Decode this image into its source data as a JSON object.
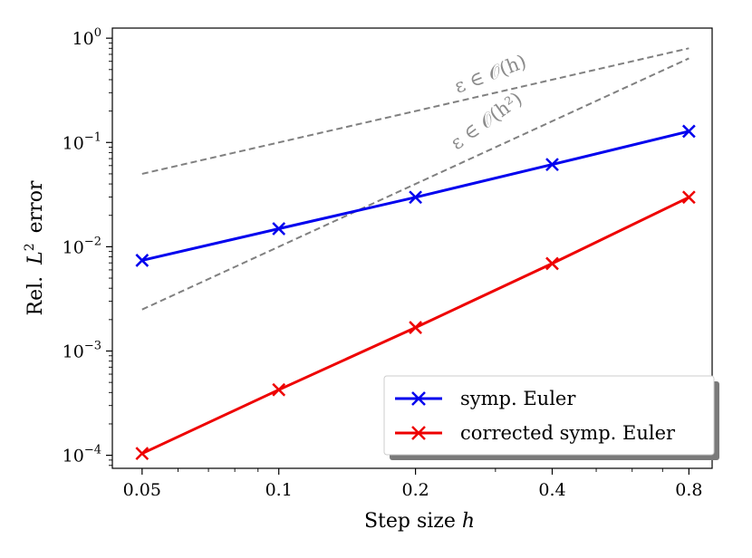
{
  "chart_data": {
    "type": "line",
    "xscale": "log",
    "yscale": "log",
    "x": [
      0.05,
      0.1,
      0.2,
      0.4,
      0.8
    ],
    "xtick_labels": [
      "0.05",
      "0.1",
      "0.2",
      "0.4",
      "0.8"
    ],
    "xlim": [
      0.043,
      0.9
    ],
    "ylim": [
      7.5e-05,
      1.25
    ],
    "ytick_labels": [
      {
        "base": "10",
        "exp": "0",
        "value": 1
      },
      {
        "base": "10",
        "exp": "−1",
        "value": 0.1
      },
      {
        "base": "10",
        "exp": "−2",
        "value": 0.01
      },
      {
        "base": "10",
        "exp": "−3",
        "value": 0.001
      },
      {
        "base": "10",
        "exp": "−4",
        "value": 0.0001
      }
    ],
    "xlabel": "Step size h",
    "xlabel_text": "Step size",
    "xlabel_var": "h",
    "ylabel": "Rel. L² error",
    "ylabel_text_pre": "Rel.",
    "ylabel_var": "L",
    "ylabel_sup": "2",
    "ylabel_text_post": "error",
    "series": [
      {
        "name": "symp. Euler",
        "color": "#0000ee",
        "marker": "x",
        "values": [
          0.0074,
          0.0149,
          0.0298,
          0.0615,
          0.128
        ]
      },
      {
        "name": "corrected symp. Euler",
        "color": "#ee0000",
        "marker": "x",
        "values": [
          0.000104,
          0.000425,
          0.00168,
          0.0069,
          0.0298
        ]
      }
    ],
    "reference_lines": [
      {
        "label": "ε ∈ 𝒪(h)",
        "color": "#808080",
        "style": "dashed",
        "x": [
          0.05,
          0.8
        ],
        "values": [
          0.05,
          0.8
        ]
      },
      {
        "label": "ε ∈ 𝒪(h²)",
        "color": "#808080",
        "style": "dashed",
        "x": [
          0.05,
          0.8
        ],
        "values": [
          0.0025,
          0.64
        ]
      }
    ],
    "legend_position": "lower right"
  }
}
